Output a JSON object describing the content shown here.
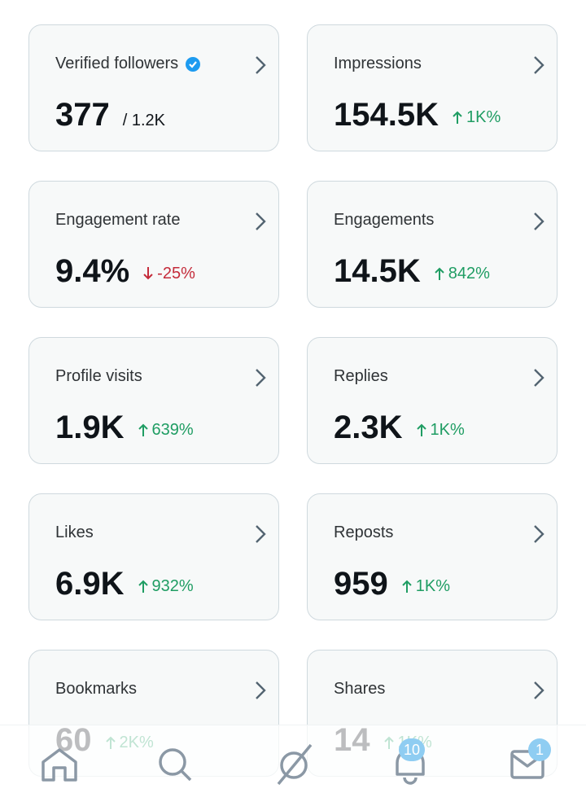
{
  "cards": [
    {
      "label": "Verified followers",
      "verified": true,
      "value": "377",
      "total": "/ 1.2K"
    },
    {
      "label": "Impressions",
      "value": "154.5K",
      "change": "1K%",
      "direction": "up"
    },
    {
      "label": "Engagement rate",
      "value": "9.4%",
      "change": "-25%",
      "direction": "down"
    },
    {
      "label": "Engagements",
      "value": "14.5K",
      "change": "842%",
      "direction": "up"
    },
    {
      "label": "Profile visits",
      "value": "1.9K",
      "change": "639%",
      "direction": "up"
    },
    {
      "label": "Replies",
      "value": "2.3K",
      "change": "1K%",
      "direction": "up"
    },
    {
      "label": "Likes",
      "value": "6.9K",
      "change": "932%",
      "direction": "up"
    },
    {
      "label": "Reposts",
      "value": "959",
      "change": "1K%",
      "direction": "up"
    },
    {
      "label": "Bookmarks",
      "value": "60",
      "change": "2K%",
      "direction": "up"
    },
    {
      "label": "Shares",
      "value": "14",
      "change": "1K%",
      "direction": "up"
    }
  ],
  "nav": {
    "notifications_badge": "10",
    "messages_badge": "1"
  }
}
